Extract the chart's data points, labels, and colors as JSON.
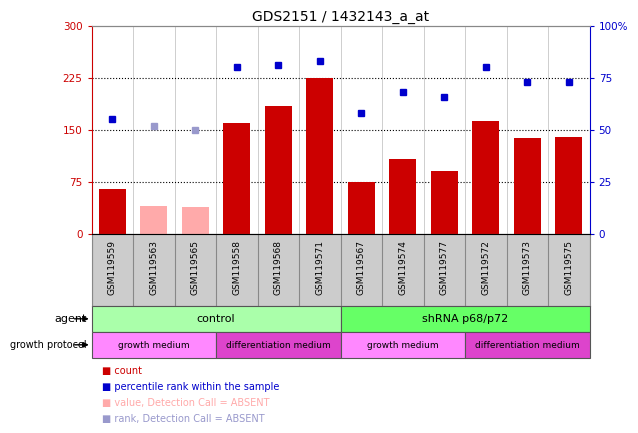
{
  "title": "GDS2151 / 1432143_a_at",
  "samples": [
    "GSM119559",
    "GSM119563",
    "GSM119565",
    "GSM119558",
    "GSM119568",
    "GSM119571",
    "GSM119567",
    "GSM119574",
    "GSM119577",
    "GSM119572",
    "GSM119573",
    "GSM119575"
  ],
  "bar_values": [
    65,
    40,
    38,
    160,
    185,
    225,
    75,
    108,
    90,
    163,
    138,
    140
  ],
  "bar_colors": [
    "#cc0000",
    "#ffaaaa",
    "#ffaaaa",
    "#cc0000",
    "#cc0000",
    "#cc0000",
    "#cc0000",
    "#cc0000",
    "#cc0000",
    "#cc0000",
    "#cc0000",
    "#cc0000"
  ],
  "rank_values": [
    55,
    52,
    50,
    80,
    81,
    83,
    58,
    68,
    66,
    80,
    73,
    73
  ],
  "rank_colors": [
    "#0000cc",
    "#9999cc",
    "#9999cc",
    "#0000cc",
    "#0000cc",
    "#0000cc",
    "#0000cc",
    "#0000cc",
    "#0000cc",
    "#0000cc",
    "#0000cc",
    "#0000cc"
  ],
  "absent_flags": [
    false,
    true,
    true,
    false,
    false,
    false,
    false,
    false,
    false,
    false,
    false,
    false
  ],
  "left_ylim": [
    0,
    300
  ],
  "right_ylim": [
    0,
    100
  ],
  "left_yticks": [
    0,
    75,
    150,
    225,
    300
  ],
  "right_yticks": [
    0,
    25,
    50,
    75,
    100
  ],
  "right_yticklabels": [
    "0",
    "25",
    "50",
    "75",
    "100%"
  ],
  "hgrid_values": [
    75,
    150,
    225
  ],
  "agent_groups": [
    {
      "label": "control",
      "xstart": 0,
      "xend": 6,
      "color": "#aaffaa"
    },
    {
      "label": "shRNA p68/p72",
      "xstart": 6,
      "xend": 12,
      "color": "#66ff66"
    }
  ],
  "growth_groups": [
    {
      "label": "growth medium",
      "xstart": 0,
      "xend": 3,
      "color": "#ff88ff"
    },
    {
      "label": "differentiation medium",
      "xstart": 3,
      "xend": 6,
      "color": "#dd44cc"
    },
    {
      "label": "growth medium",
      "xstart": 6,
      "xend": 9,
      "color": "#ff88ff"
    },
    {
      "label": "differentiation medium",
      "xstart": 9,
      "xend": 12,
      "color": "#dd44cc"
    }
  ],
  "legend_items": [
    {
      "label": "count",
      "color": "#cc0000"
    },
    {
      "label": "percentile rank within the sample",
      "color": "#0000cc"
    },
    {
      "label": "value, Detection Call = ABSENT",
      "color": "#ffaaaa"
    },
    {
      "label": "rank, Detection Call = ABSENT",
      "color": "#9999cc"
    }
  ],
  "background_color": "#ffffff",
  "xlabel_color": "#cc0000",
  "ylabel_right_color": "#0000cc",
  "xtick_bg_color": "#cccccc"
}
